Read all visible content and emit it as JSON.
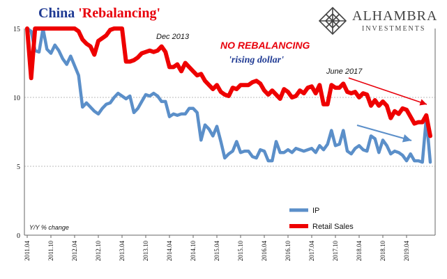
{
  "title": {
    "prefix": "China ",
    "highlight": "'Rebalancing'",
    "prefix_color": "#1f3a93",
    "highlight_color": "#e8000b"
  },
  "logo": {
    "name": "ALHAMBRA",
    "sub": "INVESTMENTS",
    "color": "#444444",
    "icon": "diamond-lattice-icon"
  },
  "chart_data": {
    "type": "line",
    "ylim": [
      0,
      15
    ],
    "yticks": [
      "0",
      "5",
      "10",
      "15"
    ],
    "xlabel": "",
    "ylabel": "Y/Y % change",
    "grid": true,
    "xtick_labels": [
      "2011.04",
      "2011.10",
      "2012.04",
      "2012.10",
      "2013.04",
      "2013.10",
      "2014.04",
      "2014.10",
      "2015.04",
      "2015.10",
      "2016.04",
      "2016.10",
      "2017.04",
      "2017.10",
      "2018.04",
      "2018.10",
      "2019.04"
    ],
    "legend_position": "bottom-right",
    "series": [
      {
        "name": "IP",
        "color": "#5b8fc9",
        "values": [
          15,
          14.8,
          13.4,
          13.3,
          15,
          13.5,
          13.2,
          13.8,
          13.4,
          12.8,
          12.4,
          13,
          12.3,
          11.6,
          9.3,
          9.6,
          9.3,
          9,
          8.8,
          9.2,
          9.5,
          9.6,
          10,
          10.3,
          10.1,
          9.9,
          10.1,
          8.9,
          9.2,
          9.7,
          10.2,
          10.1,
          10.3,
          10.1,
          9.7,
          9.7,
          8.6,
          8.8,
          8.7,
          8.8,
          8.8,
          9.2,
          9.2,
          8.9,
          6.9,
          8,
          7.7,
          7.2,
          7.9,
          6.8,
          5.6,
          5.9,
          6.1,
          6.8,
          6,
          6.1,
          6.1,
          5.7,
          5.6,
          6.2,
          6.1,
          5.4,
          5.4,
          6.8,
          6,
          6,
          6.2,
          6,
          6.3,
          6.2,
          6.1,
          6.2,
          6.3,
          6,
          6.5,
          6.2,
          6.6,
          7.6,
          6.5,
          6.6,
          7.6,
          6.1,
          5.9,
          6.3,
          6.5,
          6.2,
          6.1,
          7.2,
          7,
          6,
          6.9,
          6.5,
          5.9,
          6.1,
          6,
          5.8,
          5.4,
          5.9,
          5.4,
          5.4,
          5.3,
          8.5,
          5.3
        ]
      },
      {
        "name": "Retail Sales",
        "color": "#ee0000",
        "values": [
          15,
          11.4,
          15,
          15,
          15,
          15,
          15,
          15,
          15,
          15,
          15,
          15,
          15,
          14.8,
          14.2,
          13.9,
          13.7,
          13.1,
          14.1,
          14.3,
          14.5,
          14.9,
          15,
          15,
          15,
          12.6,
          12.6,
          12.7,
          12.9,
          13.2,
          13.3,
          13.4,
          13.3,
          13.4,
          13.7,
          13.3,
          12.2,
          12.2,
          12.4,
          11.9,
          12.5,
          12.2,
          11.9,
          11.6,
          11.7,
          11.2,
          10.9,
          10.6,
          10.9,
          10.4,
          10.2,
          10.1,
          10.7,
          10.6,
          10.9,
          10.9,
          10.9,
          11.1,
          11.2,
          11,
          10.5,
          10.2,
          10.5,
          10.2,
          9.9,
          10.6,
          10.4,
          10,
          10.1,
          10.5,
          10.3,
          10.7,
          10.8,
          10.3,
          10.9,
          9.5,
          9.5,
          10.9,
          10.7,
          10.7,
          11,
          10.4,
          10.3,
          10.4,
          10,
          10.3,
          10.2,
          9.4,
          9.8,
          9.4,
          9.7,
          9.4,
          8.5,
          9,
          8.8,
          9.2,
          9.1,
          8.6,
          8.1,
          8.2,
          8.2,
          8.7,
          7.2
        ]
      }
    ],
    "annotations": [
      {
        "text": "Dec 2013",
        "color": "#111111"
      },
      {
        "text": "NO REBALANCING",
        "color": "#e8000b"
      },
      {
        "text": "'rising dollar'",
        "color": "#1f3a93"
      },
      {
        "text": "June 2017",
        "color": "#e8000b"
      }
    ]
  }
}
